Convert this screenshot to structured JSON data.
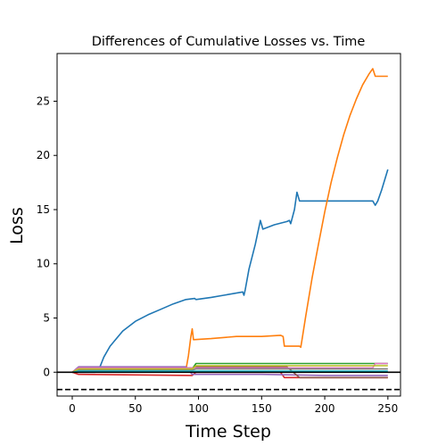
{
  "chart_data": {
    "type": "line",
    "title": "Differences of Cumulative Losses vs. Time",
    "xlabel": "Time Step",
    "ylabel": "Loss",
    "xlim": [
      -12,
      260
    ],
    "ylim": [
      -2.2,
      29.4
    ],
    "xticks": [
      0,
      50,
      100,
      150,
      200,
      250
    ],
    "yticks": [
      0,
      5,
      10,
      15,
      20,
      25
    ],
    "grid": false,
    "reference_lines": [
      {
        "y": 0,
        "style": "solid",
        "color": "#000000"
      },
      {
        "y": -1.6,
        "style": "dashed",
        "color": "#000000"
      }
    ],
    "series": [
      {
        "color": "#1f77b4",
        "points": [
          [
            0,
            0
          ],
          [
            18,
            0
          ],
          [
            22,
            0.5
          ],
          [
            25,
            1.4
          ],
          [
            30,
            2.4
          ],
          [
            40,
            3.8
          ],
          [
            50,
            4.7
          ],
          [
            60,
            5.3
          ],
          [
            70,
            5.8
          ],
          [
            80,
            6.3
          ],
          [
            90,
            6.7
          ],
          [
            97,
            6.8
          ],
          [
            98,
            6.7
          ],
          [
            110,
            6.9
          ],
          [
            120,
            7.1
          ],
          [
            135,
            7.4
          ],
          [
            136,
            7.1
          ],
          [
            137,
            7.6
          ],
          [
            140,
            9.5
          ],
          [
            145,
            11.8
          ],
          [
            149,
            14.0
          ],
          [
            151,
            13.2
          ],
          [
            160,
            13.6
          ],
          [
            170,
            13.9
          ],
          [
            172,
            14.0
          ],
          [
            173,
            13.7
          ],
          [
            176,
            15.0
          ],
          [
            178,
            16.6
          ],
          [
            180,
            15.8
          ],
          [
            190,
            15.8
          ],
          [
            210,
            15.8
          ],
          [
            230,
            15.8
          ],
          [
            238,
            15.8
          ],
          [
            240,
            15.4
          ],
          [
            242,
            15.8
          ],
          [
            245,
            16.8
          ],
          [
            250,
            18.7
          ]
        ]
      },
      {
        "color": "#ff7f0e",
        "points": [
          [
            0,
            0
          ],
          [
            5,
            0.2
          ],
          [
            90,
            0.2
          ],
          [
            92,
            1.5
          ],
          [
            94,
            3.3
          ],
          [
            95,
            4.0
          ],
          [
            96,
            3.0
          ],
          [
            110,
            3.1
          ],
          [
            130,
            3.3
          ],
          [
            150,
            3.3
          ],
          [
            165,
            3.4
          ],
          [
            167,
            3.3
          ],
          [
            168,
            2.4
          ],
          [
            180,
            2.4
          ],
          [
            181,
            2.3
          ],
          [
            182,
            3.0
          ],
          [
            185,
            5.2
          ],
          [
            190,
            8.7
          ],
          [
            195,
            11.8
          ],
          [
            200,
            14.8
          ],
          [
            205,
            17.5
          ],
          [
            210,
            19.8
          ],
          [
            215,
            21.9
          ],
          [
            220,
            23.7
          ],
          [
            225,
            25.2
          ],
          [
            230,
            26.5
          ],
          [
            235,
            27.5
          ],
          [
            238,
            28.0
          ],
          [
            240,
            27.3
          ],
          [
            250,
            27.3
          ]
        ]
      },
      {
        "color": "#2ca02c",
        "points": [
          [
            0,
            0
          ],
          [
            5,
            0.3
          ],
          [
            90,
            0.3
          ],
          [
            95,
            0.3
          ],
          [
            98,
            0.8
          ],
          [
            150,
            0.8
          ],
          [
            200,
            0.8
          ],
          [
            250,
            0.8
          ]
        ]
      },
      {
        "color": "#d62728",
        "points": [
          [
            0,
            0
          ],
          [
            5,
            -0.2
          ],
          [
            95,
            -0.3
          ],
          [
            98,
            0.0
          ],
          [
            165,
            0.0
          ],
          [
            168,
            -0.5
          ],
          [
            250,
            -0.5
          ]
        ]
      },
      {
        "color": "#9467bd",
        "points": [
          [
            0,
            0
          ],
          [
            5,
            0.5
          ],
          [
            90,
            0.5
          ],
          [
            95,
            -0.2
          ],
          [
            150,
            -0.2
          ],
          [
            200,
            -0.3
          ],
          [
            250,
            -0.3
          ]
        ]
      },
      {
        "color": "#8c564b",
        "points": [
          [
            0,
            0
          ],
          [
            5,
            0.4
          ],
          [
            95,
            0.4
          ],
          [
            98,
            0.5
          ],
          [
            170,
            0.5
          ],
          [
            180,
            -0.5
          ],
          [
            240,
            -0.5
          ],
          [
            250,
            -0.5
          ]
        ]
      },
      {
        "color": "#e377c2",
        "points": [
          [
            0,
            0
          ],
          [
            5,
            0.4
          ],
          [
            95,
            0.4
          ],
          [
            98,
            0.4
          ],
          [
            238,
            0.4
          ],
          [
            240,
            0.8
          ],
          [
            250,
            0.8
          ]
        ]
      },
      {
        "color": "#7f7f7f",
        "points": [
          [
            0,
            0
          ],
          [
            5,
            0.2
          ],
          [
            95,
            0.2
          ],
          [
            98,
            0.3
          ],
          [
            250,
            0.3
          ]
        ]
      },
      {
        "color": "#bcbd22",
        "points": [
          [
            0,
            0
          ],
          [
            5,
            0.3
          ],
          [
            95,
            0.3
          ],
          [
            98,
            0.6
          ],
          [
            250,
            0.6
          ]
        ]
      },
      {
        "color": "#17becf",
        "points": [
          [
            0,
            0
          ],
          [
            5,
            0.1
          ],
          [
            95,
            0.1
          ],
          [
            98,
            0.1
          ],
          [
            250,
            0.1
          ]
        ]
      }
    ]
  }
}
